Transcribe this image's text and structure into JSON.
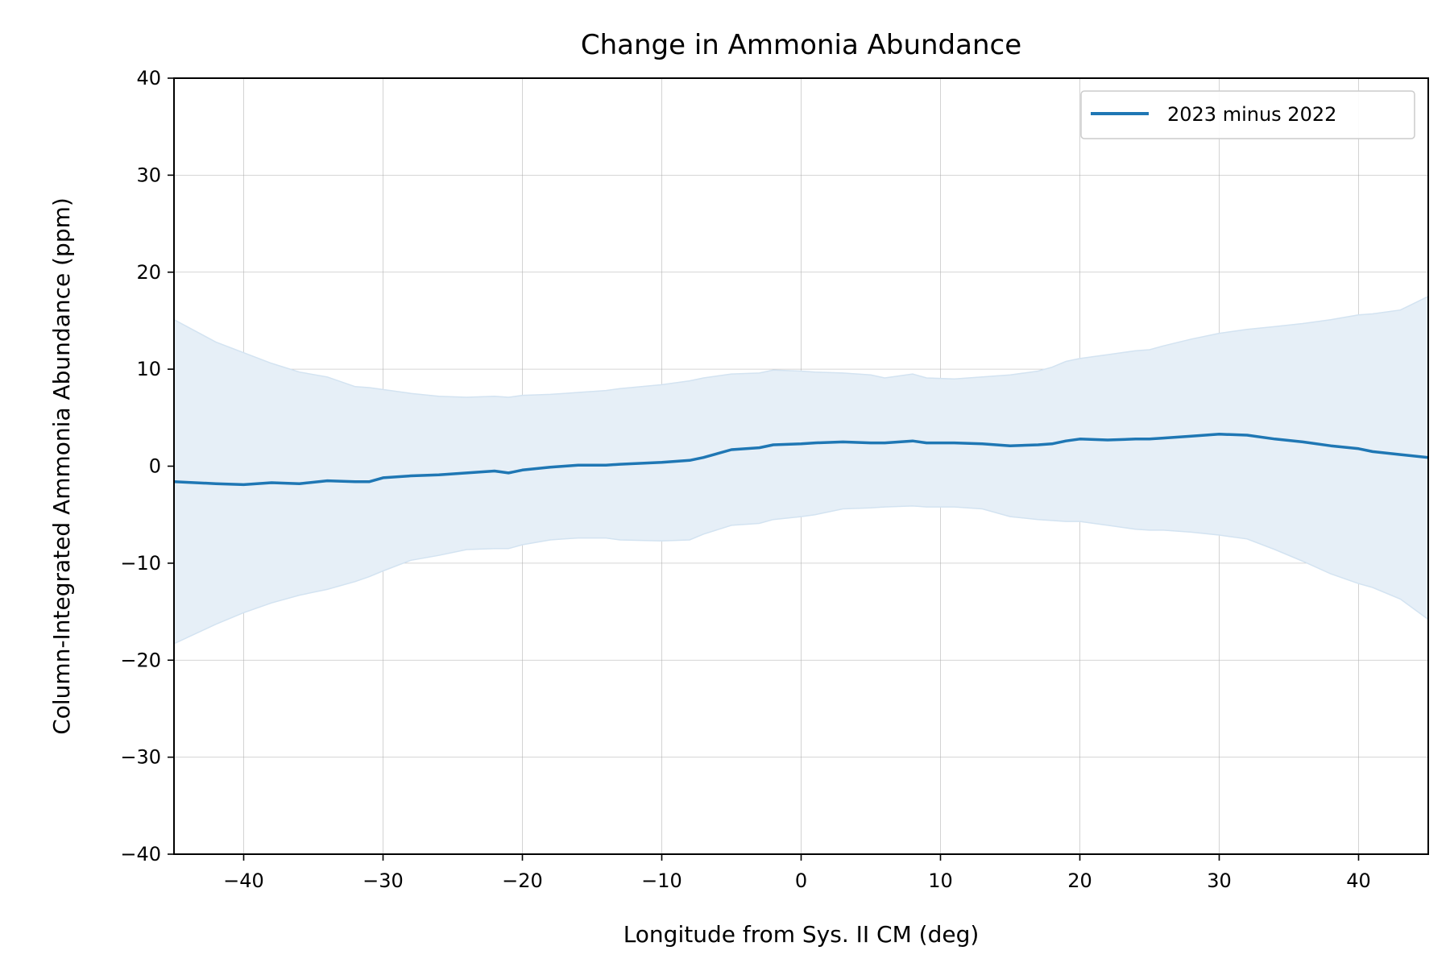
{
  "chart_data": {
    "type": "line",
    "title": "Change in Ammonia Abundance",
    "xlabel": "Longitude from Sys. II CM (deg)",
    "ylabel": "Column-Integrated Ammonia Abundance (ppm)",
    "xlim": [
      -45,
      45
    ],
    "ylim": [
      -40,
      40
    ],
    "xticks": [
      -40,
      -30,
      -20,
      -10,
      0,
      10,
      20,
      30,
      40
    ],
    "xtick_labels": [
      "−40",
      "−30",
      "−20",
      "−10",
      "0",
      "10",
      "20",
      "30",
      "40"
    ],
    "yticks": [
      -40,
      -30,
      -20,
      -10,
      0,
      10,
      20,
      30,
      40
    ],
    "ytick_labels": [
      "−40",
      "−30",
      "−20",
      "−10",
      "0",
      "10",
      "20",
      "30",
      "40"
    ],
    "grid": true,
    "legend_position": "top-right",
    "colors": {
      "line": "#1f77b4",
      "band": "#e6eff7"
    },
    "series": [
      {
        "name": "2023 minus 2022",
        "x": [
          -45,
          -42,
          -40,
          -38,
          -36,
          -34,
          -32,
          -31,
          -30,
          -28,
          -26,
          -24,
          -22,
          -21,
          -20,
          -18,
          -17,
          -16,
          -14,
          -13,
          -10,
          -8,
          -7,
          -5,
          -3,
          -2,
          0,
          1,
          3,
          5,
          6,
          8,
          9,
          11,
          13,
          15,
          17,
          18,
          19,
          20,
          22,
          24,
          25,
          26,
          28,
          30,
          32,
          34,
          36,
          38,
          40,
          41,
          43,
          45
        ],
        "values": [
          -1.6,
          -1.8,
          -1.9,
          -1.7,
          -1.8,
          -1.5,
          -1.6,
          -1.6,
          -1.2,
          -1.0,
          -0.9,
          -0.7,
          -0.5,
          -0.7,
          -0.4,
          -0.1,
          0.0,
          0.1,
          0.1,
          0.2,
          0.4,
          0.6,
          0.9,
          1.7,
          1.9,
          2.2,
          2.3,
          2.4,
          2.5,
          2.4,
          2.4,
          2.6,
          2.4,
          2.4,
          2.3,
          2.1,
          2.2,
          2.3,
          2.6,
          2.8,
          2.7,
          2.8,
          2.8,
          2.9,
          3.1,
          3.3,
          3.2,
          2.8,
          2.5,
          2.1,
          1.8,
          1.5,
          1.2,
          0.9
        ],
        "upper": [
          15.1,
          12.8,
          11.7,
          10.6,
          9.7,
          9.2,
          8.2,
          8.1,
          7.9,
          7.5,
          7.2,
          7.1,
          7.2,
          7.1,
          7.3,
          7.4,
          7.5,
          7.6,
          7.8,
          8.0,
          8.4,
          8.8,
          9.1,
          9.5,
          9.6,
          9.9,
          9.8,
          9.7,
          9.6,
          9.4,
          9.1,
          9.5,
          9.1,
          9.0,
          9.2,
          9.4,
          9.8,
          10.2,
          10.8,
          11.1,
          11.5,
          11.9,
          12.0,
          12.4,
          13.1,
          13.7,
          14.1,
          14.4,
          14.7,
          15.1,
          15.6,
          15.7,
          16.1,
          17.5
        ],
        "lower": [
          -18.3,
          -16.3,
          -15.1,
          -14.1,
          -13.3,
          -12.7,
          -11.9,
          -11.4,
          -10.8,
          -9.7,
          -9.2,
          -8.6,
          -8.5,
          -8.5,
          -8.1,
          -7.6,
          -7.5,
          -7.4,
          -7.4,
          -7.6,
          -7.7,
          -7.6,
          -7.0,
          -6.1,
          -5.9,
          -5.5,
          -5.2,
          -5.0,
          -4.4,
          -4.3,
          -4.2,
          -4.1,
          -4.2,
          -4.2,
          -4.4,
          -5.2,
          -5.5,
          -5.6,
          -5.7,
          -5.7,
          -6.1,
          -6.5,
          -6.6,
          -6.6,
          -6.8,
          -7.1,
          -7.5,
          -8.6,
          -9.8,
          -11.1,
          -12.1,
          -12.5,
          -13.7,
          -15.8
        ]
      }
    ]
  }
}
